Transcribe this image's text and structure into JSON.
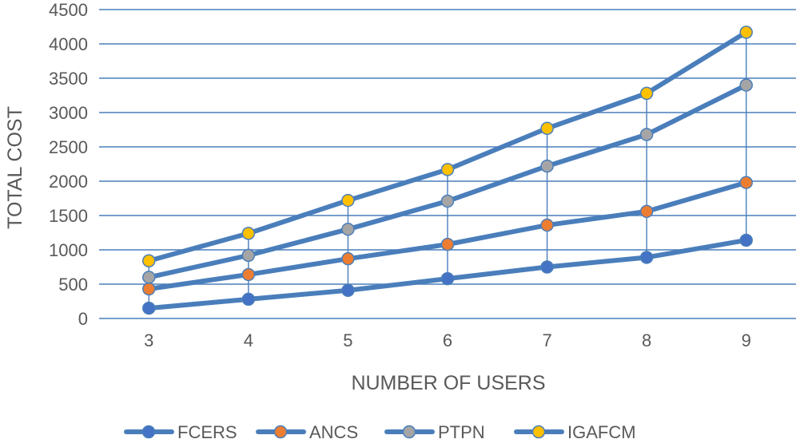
{
  "chart_data": {
    "type": "line",
    "title": "",
    "xlabel": "NUMBER OF USERS",
    "ylabel": "TOTAL COST",
    "x": [
      3,
      4,
      5,
      6,
      7,
      8,
      9
    ],
    "ylim": [
      0,
      4500
    ],
    "yticks": [
      0,
      500,
      1000,
      1500,
      2000,
      2500,
      3000,
      3500,
      4000,
      4500
    ],
    "grid": true,
    "legend_position": "bottom",
    "line_color": "#4a7ebb",
    "series": [
      {
        "name": "FCERS",
        "marker_color": "#4472c4",
        "values": [
          150,
          280,
          410,
          580,
          750,
          890,
          1140
        ]
      },
      {
        "name": "ANCS",
        "marker_color": "#ed7d31",
        "values": [
          430,
          640,
          870,
          1080,
          1360,
          1560,
          1980
        ]
      },
      {
        "name": "PTPN",
        "marker_color": "#a5a5a5",
        "values": [
          600,
          920,
          1300,
          1710,
          2220,
          2680,
          3400
        ]
      },
      {
        "name": "IGAFCM",
        "marker_color": "#ffc000",
        "values": [
          840,
          1240,
          1720,
          2170,
          2770,
          3280,
          4170
        ]
      }
    ]
  }
}
